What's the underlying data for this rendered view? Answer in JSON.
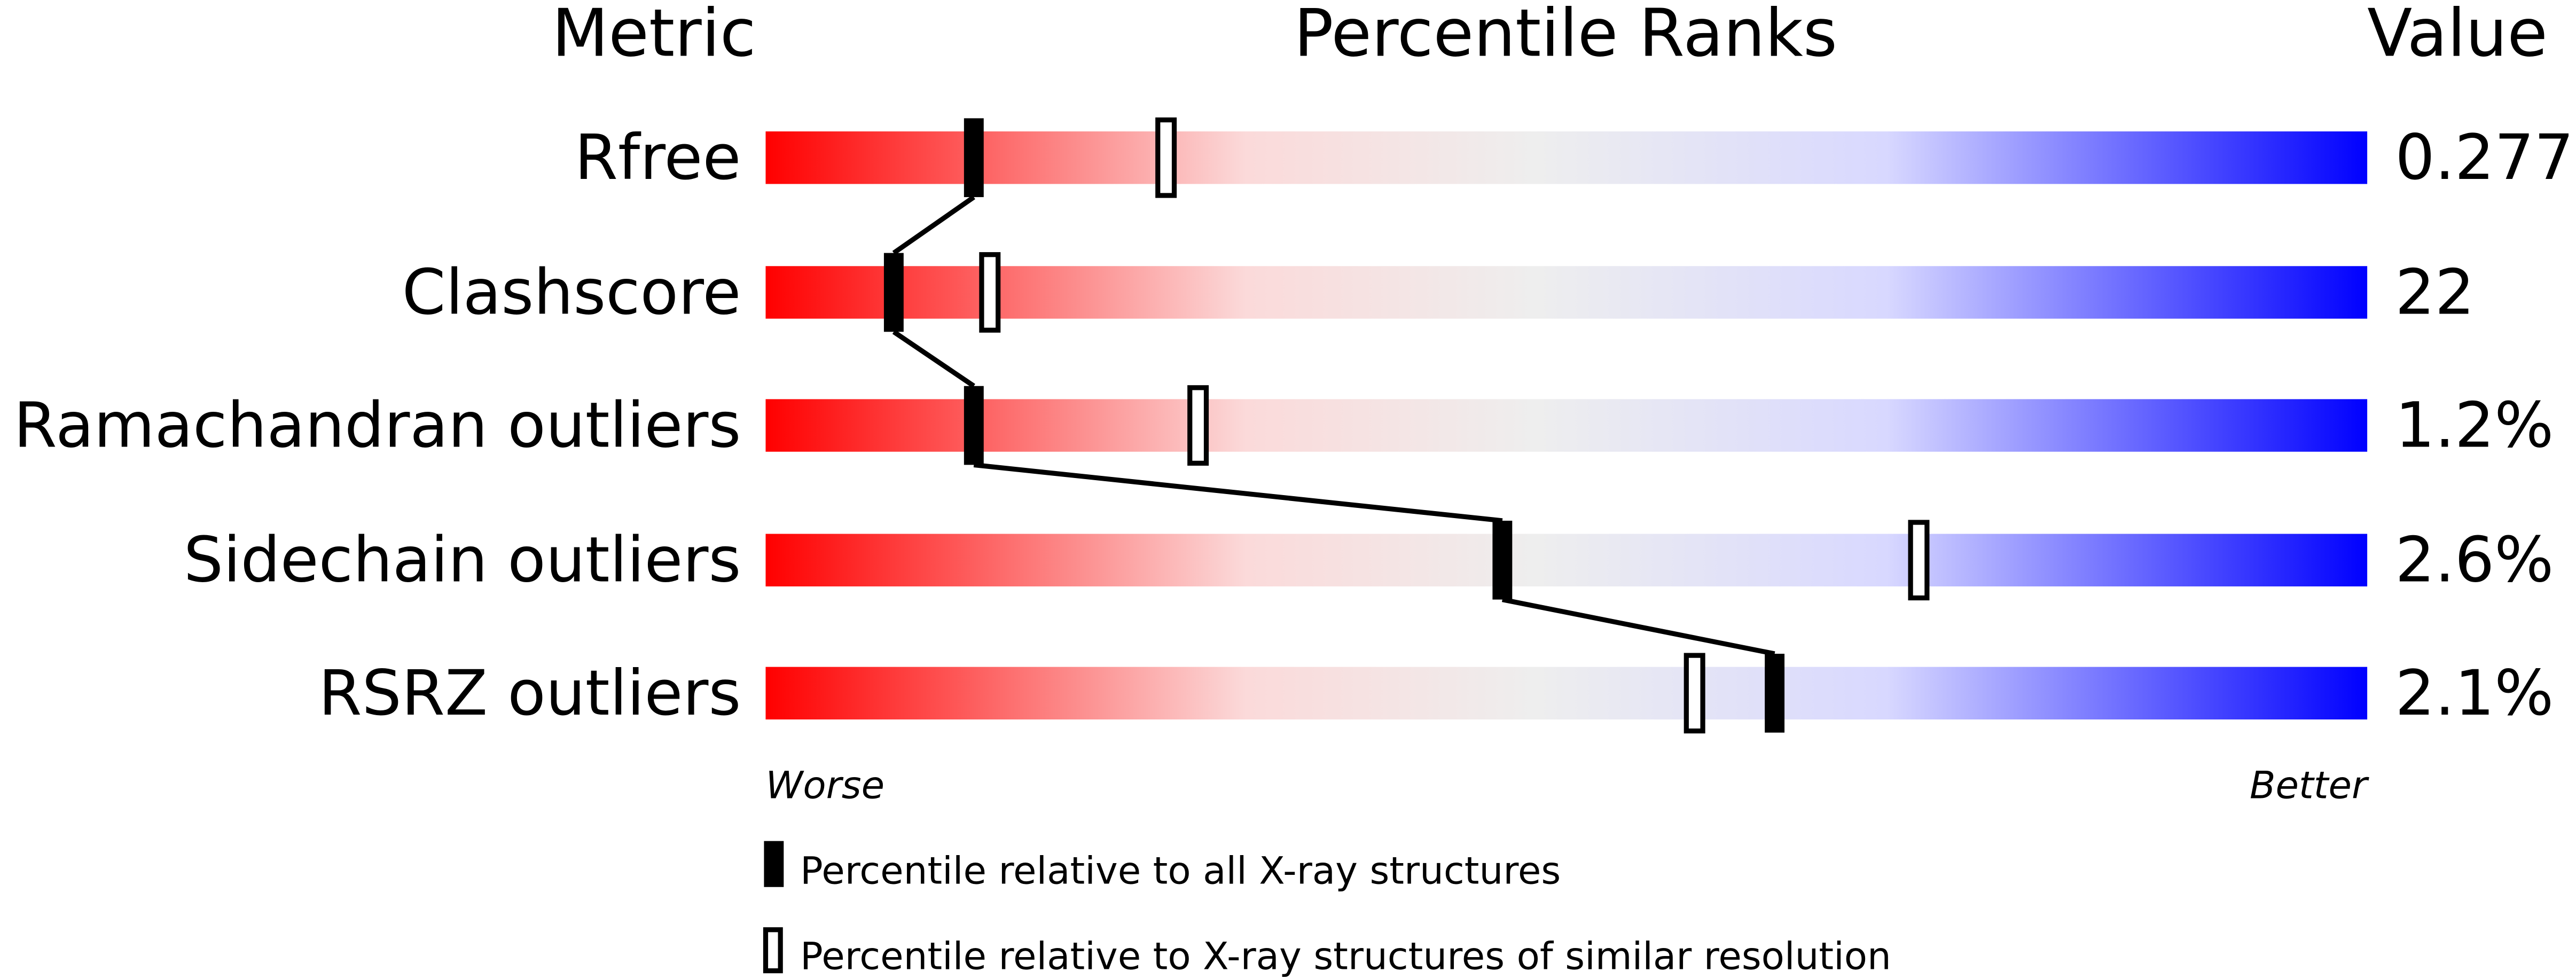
{
  "chart_data": {
    "type": "percentile-slider",
    "headers": {
      "metric": "Metric",
      "ranks": "Percentile Ranks",
      "value": "Value"
    },
    "axis": {
      "worse": "Worse",
      "better": "Better",
      "range": [
        0,
        100
      ]
    },
    "rows": [
      {
        "metric": "Rfree",
        "value": "0.277",
        "percentile_all": 13,
        "percentile_similar": 25
      },
      {
        "metric": "Clashscore",
        "value": "22",
        "percentile_all": 8,
        "percentile_similar": 14
      },
      {
        "metric": "Ramachandran outliers",
        "value": "1.2%",
        "percentile_all": 13,
        "percentile_similar": 27
      },
      {
        "metric": "Sidechain outliers",
        "value": "2.6%",
        "percentile_all": 46,
        "percentile_similar": 72
      },
      {
        "metric": "RSRZ outliers",
        "value": "2.1%",
        "percentile_all": 63,
        "percentile_similar": 58
      }
    ],
    "legend": {
      "all": "Percentile relative to all X-ray structures",
      "similar": "Percentile relative to X-ray structures of similar resolution"
    },
    "colors": {
      "worse": "#ff0000",
      "mid": "#eeeeee",
      "better": "#0000ff",
      "marker": "#000000"
    }
  }
}
